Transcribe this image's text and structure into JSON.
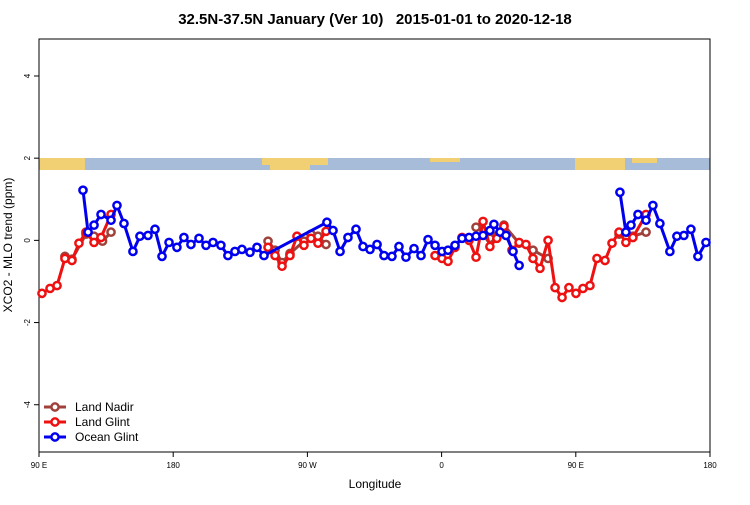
{
  "chart_data": {
    "type": "line",
    "title": "32.5N-37.5N January (Ver 10)   2015-01-01 to 2020-12-18",
    "x_label": "Longitude",
    "y_label": "XCO2 - MLO trend (ppm)",
    "xlim": [
      90,
      540
    ],
    "xticks": [
      {
        "value": 90,
        "label": "90 E"
      },
      180,
      {
        "value": 270,
        "label": "90 W"
      },
      {
        "value": 360,
        "label": "0"
      },
      {
        "value": 450,
        "label": "90 E"
      },
      {
        "value": 540,
        "label": "180"
      }
    ],
    "ylim": [
      -5.15,
      4.9
    ],
    "yticks": [
      -4,
      -2,
      0,
      2,
      4
    ],
    "legend": "bottom-left",
    "series": [
      {
        "name": "Land Nadir",
        "color": "#a0403a",
        "x": [
          107.4,
          112.1,
          121.5,
          126.9,
          132.6,
          138.3,
          null,
          243.6,
          248.3,
          253,
          258.3,
          267.7,
          272.4,
          277.1,
          282.5,
          null,
          383.1,
          392.4,
          401.8,
          412,
          421.3,
          431.4,
          null,
          479,
          488.3,
          497.1
        ],
        "values": [
          -0.39,
          -0.46,
          0.15,
          0.1,
          -0.02,
          0.2,
          null,
          -0.02,
          -0.24,
          -0.54,
          -0.32,
          -0.02,
          0.15,
          0.1,
          -0.1,
          null,
          0.32,
          0.05,
          0.37,
          -0.07,
          -0.24,
          -0.44,
          null,
          0.15,
          0.1,
          0.2
        ]
      },
      {
        "name": "Land Glint",
        "color": "#ee1111",
        "x": [
          92,
          97.4,
          102.1,
          107.4,
          112.1,
          116.8,
          121.5,
          126.9,
          131.6,
          138.3,
          null,
          243.6,
          248.3,
          253,
          258.3,
          263,
          267.7,
          272.4,
          277.1,
          282.5,
          null,
          355.6,
          360.3,
          364.3,
          369,
          373.7,
          378.4,
          383.1,
          387.8,
          392.4,
          397.1,
          401.8,
          407.2,
          412,
          416.6,
          421.3,
          426,
          431.4,
          436.1,
          440.8,
          445.4,
          450.1,
          454.8,
          459.5,
          464.2,
          469.6,
          474.3,
          479,
          483.6,
          488.3,
          497.1
        ],
        "values": [
          -1.29,
          -1.17,
          -1.1,
          -0.44,
          -0.49,
          -0.07,
          0.2,
          -0.05,
          0.07,
          0.63,
          null,
          -0.17,
          -0.37,
          -0.63,
          -0.37,
          0.1,
          -0.12,
          0.05,
          -0.07,
          0.22,
          null,
          -0.37,
          -0.44,
          -0.51,
          -0.17,
          0.07,
          0,
          -0.41,
          0.46,
          -0.15,
          0.05,
          0.34,
          -0.24,
          -0.05,
          -0.1,
          -0.44,
          -0.68,
          0,
          -1.15,
          -1.39,
          -1.15,
          -1.29,
          -1.17,
          -1.1,
          -0.44,
          -0.49,
          -0.07,
          0.2,
          -0.05,
          0.07,
          0.63
        ]
      },
      {
        "name": "Ocean Glint",
        "color": "#0000ee",
        "x": [
          119.5,
          122.9,
          126.9,
          131.6,
          138.3,
          142.3,
          147,
          153,
          157.7,
          163.1,
          167.8,
          172.5,
          177.2,
          182.5,
          187.2,
          191.9,
          197.3,
          202,
          206.7,
          212,
          216.7,
          221.4,
          226.1,
          231.5,
          236.2,
          240.9,
          283.1,
          287.2,
          291.9,
          297.2,
          302.6,
          307.3,
          312,
          316.7,
          321.4,
          326.7,
          331.4,
          336.1,
          341.5,
          346.2,
          350.9,
          355.6,
          360.3,
          364.3,
          369,
          373.7,
          378.4,
          383.1,
          387.8,
          392.4,
          395.1,
          399.2,
          403.2,
          407.9,
          412,
          null,
          479.6,
          483.6,
          487,
          491.7,
          497.1,
          501.7,
          506.4,
          513.1,
          517.8,
          522.5,
          527.2,
          531.9,
          537.3
        ],
        "values": [
          1.22,
          0.2,
          0.37,
          0.63,
          0.49,
          0.85,
          0.41,
          -0.27,
          0.1,
          0.12,
          0.27,
          -0.39,
          -0.05,
          -0.17,
          0.07,
          -0.1,
          0.05,
          -0.12,
          -0.05,
          -0.12,
          -0.37,
          -0.27,
          -0.22,
          -0.29,
          -0.17,
          -0.37,
          0.44,
          0.24,
          -0.27,
          0.07,
          0.27,
          -0.15,
          -0.22,
          -0.1,
          -0.37,
          -0.39,
          -0.15,
          -0.41,
          -0.2,
          -0.37,
          0.02,
          -0.12,
          -0.27,
          -0.24,
          -0.12,
          0.05,
          0.07,
          0.1,
          0.12,
          0.24,
          0.39,
          0.2,
          0.12,
          -0.27,
          -0.61,
          null,
          1.17,
          0.2,
          0.37,
          0.63,
          0.49,
          0.85,
          0.41,
          -0.27,
          0.1,
          0.12,
          0.27,
          -0.39,
          -0.05
        ]
      }
    ]
  }
}
